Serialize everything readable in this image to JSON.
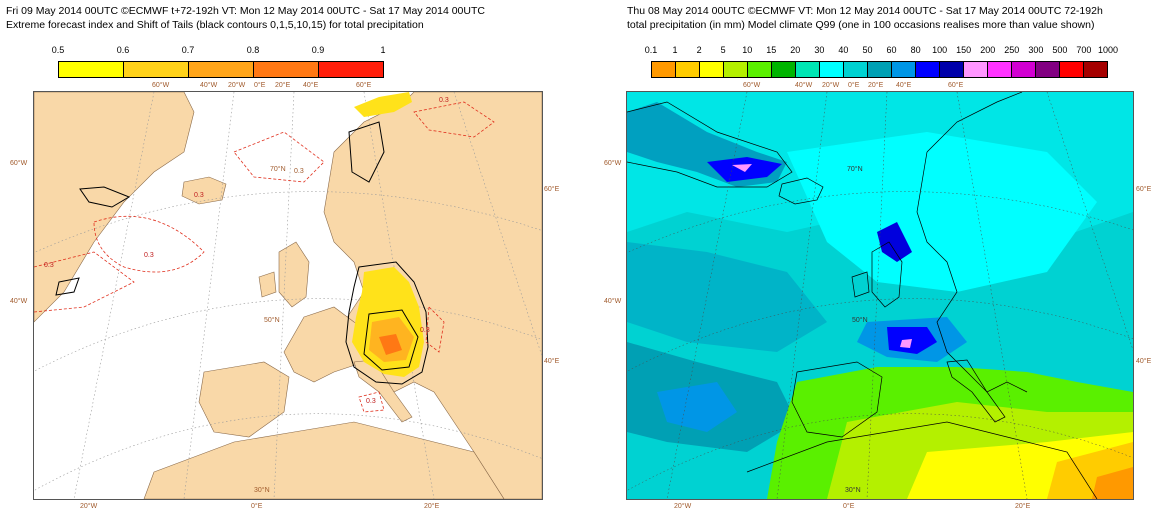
{
  "left_panel": {
    "title_line1": "Fri 09 May 2014 00UTC ©ECMWF t+72-192h  VT: Mon 12 May 2014 00UTC - Sat 17 May 2014 00UTC",
    "title_line2": "Extreme forecast index and Shift of Tails (black contours 0,1,5,10,15) for total precipitation",
    "legend": {
      "labels": [
        "0.5",
        "0.6",
        "0.7",
        "0.8",
        "0.9",
        "1"
      ],
      "colors": [
        "#ffff00",
        "#ffd21a",
        "#ffa51a",
        "#ff7814",
        "#ff1e0a"
      ]
    },
    "contour_labels": [
      "0.3",
      "0.3",
      "0.3",
      "0.3",
      "0.3",
      "0.3",
      "0.3"
    ],
    "axis_labels": {
      "top": [
        "60°W",
        "40°W",
        "20°W",
        "0°E",
        "20°E",
        "40°E",
        "60°E"
      ],
      "left": [
        "60°W",
        "40°W"
      ],
      "right": [
        "60°E",
        "40°E"
      ],
      "bottom": [
        "20°W",
        "0°E",
        "20°E"
      ],
      "inner": [
        "70°N",
        "50°N",
        "30°N"
      ]
    }
  },
  "right_panel": {
    "title_line1": "Thu 08 May 2014 00UTC ©ECMWF VT: Mon 12 May 2014 00UTC - Sat 17 May 2014 00UTC   72-192h",
    "title_line2": "total precipitation (in mm)  Model climate Q99 (one in 100 occasions realises more than value shown)",
    "legend": {
      "labels": [
        "0.1",
        "1",
        "2",
        "5",
        "10",
        "15",
        "20",
        "30",
        "40",
        "50",
        "60",
        "80",
        "100",
        "150",
        "200",
        "250",
        "300",
        "500",
        "700",
        "1000"
      ],
      "colors": [
        "#ff9900",
        "#ffcc00",
        "#ffff00",
        "#b4f000",
        "#5af000",
        "#00b400",
        "#00e6b4",
        "#00ffff",
        "#00d2d2",
        "#00a0b4",
        "#0096e6",
        "#0000ff",
        "#0000aa",
        "#ff96ff",
        "#ff32ff",
        "#d200d2",
        "#820082",
        "#ff0000",
        "#a50000"
      ]
    },
    "axis_labels": {
      "top": [
        "60°W",
        "40°W",
        "20°W",
        "0°E",
        "20°E",
        "40°E",
        "60°E"
      ],
      "left": [
        "60°W",
        "40°W"
      ],
      "right": [
        "60°E",
        "40°E"
      ],
      "bottom": [
        "20°W",
        "0°E",
        "20°E"
      ],
      "inner": [
        "70°N",
        "50°N",
        "30°N"
      ]
    }
  }
}
